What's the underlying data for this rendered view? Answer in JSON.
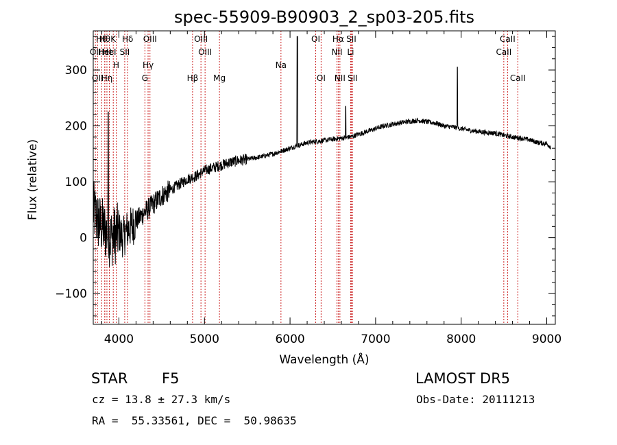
{
  "chart_data": {
    "type": "line",
    "title": "spec-55909-B90903_2_sp03-205.fits",
    "xlabel": "Wavelength (Å)",
    "ylabel": "Flux (relative)",
    "xlim": [
      3700,
      9100
    ],
    "ylim": [
      -155,
      370
    ],
    "x_ticks": [
      4000,
      5000,
      6000,
      7000,
      8000,
      9000
    ],
    "y_ticks": [
      -100,
      0,
      100,
      200,
      300
    ],
    "grid": false,
    "series": [
      {
        "x": [
          3700,
          3750,
          3800,
          3850,
          3900,
          3950,
          4000,
          4050,
          4100,
          4150,
          4200,
          4300,
          4400,
          4500,
          4600,
          4700,
          4800,
          4900,
          5000,
          5100,
          5200,
          5300,
          5400,
          5500,
          5600,
          5700,
          5800,
          5900,
          6000,
          6050,
          6100,
          6200,
          6300,
          6400,
          6500,
          6600,
          6700,
          6800,
          6900,
          7000,
          7100,
          7200,
          7300,
          7400,
          7500,
          7600,
          7700,
          7800,
          7900,
          8000,
          8100,
          8200,
          8300,
          8400,
          8500,
          8600,
          8700,
          8800,
          8900,
          9000,
          9050
        ],
        "y": [
          50,
          30,
          20,
          10,
          0,
          5,
          10,
          0,
          15,
          20,
          30,
          45,
          60,
          75,
          85,
          95,
          105,
          110,
          120,
          125,
          130,
          135,
          138,
          140,
          143,
          146,
          150,
          155,
          160,
          163,
          165,
          170,
          172,
          174,
          176,
          178,
          180,
          185,
          190,
          195,
          200,
          203,
          206,
          208,
          210,
          207,
          205,
          200,
          198,
          195,
          192,
          190,
          188,
          187,
          183,
          180,
          178,
          175,
          170,
          168,
          162
        ]
      }
    ],
    "spikes": [
      {
        "x": 6085,
        "y": 360
      },
      {
        "x": 7955,
        "y": 305
      },
      {
        "x": 6650,
        "y": 235
      },
      {
        "x": 3875,
        "y": 225
      }
    ],
    "lines": [
      {
        "x": 3725,
        "row": 1,
        "label": "OII"
      },
      {
        "x": 3750,
        "row": 3,
        "label": "OII"
      },
      {
        "x": 3798,
        "row": 0,
        "label": "Hθ"
      },
      {
        "x": 3835,
        "row": 0,
        "label": "Hθ"
      },
      {
        "x": 3835,
        "row": 1,
        "label": "HeI"
      },
      {
        "x": 3860,
        "row": 3,
        "label": "Hη"
      },
      {
        "x": 3889,
        "row": 1,
        "label": "HeI"
      },
      {
        "x": 3934,
        "row": 0,
        "label": "K"
      },
      {
        "x": 3969,
        "row": 2,
        "label": "H"
      },
      {
        "x": 4068,
        "row": 1,
        "label": "SII"
      },
      {
        "x": 4102,
        "row": 0,
        "label": "Hδ"
      },
      {
        "x": 4304,
        "row": 3,
        "label": "G"
      },
      {
        "x": 4341,
        "row": 2,
        "label": "Hγ"
      },
      {
        "x": 4363,
        "row": 0,
        "label": "OIII"
      },
      {
        "x": 4861,
        "row": 3,
        "label": "Hβ"
      },
      {
        "x": 4959,
        "row": 0,
        "label": "OIII"
      },
      {
        "x": 5007,
        "row": 1,
        "label": "OIII"
      },
      {
        "x": 5175,
        "row": 3,
        "label": "Mg"
      },
      {
        "x": 5894,
        "row": 2,
        "label": "Na"
      },
      {
        "x": 6300,
        "row": 0,
        "label": "OI"
      },
      {
        "x": 6363,
        "row": 3,
        "label": "OI"
      },
      {
        "x": 6548,
        "row": 1,
        "label": "NII"
      },
      {
        "x": 6563,
        "row": 0,
        "label": "Hα"
      },
      {
        "x": 6583,
        "row": 3,
        "label": "NII"
      },
      {
        "x": 6708,
        "row": 1,
        "label": "Li"
      },
      {
        "x": 6716,
        "row": 0,
        "label": "SII"
      },
      {
        "x": 6731,
        "row": 3,
        "label": "SII"
      },
      {
        "x": 8498,
        "row": 1,
        "label": "CaII"
      },
      {
        "x": 8542,
        "row": 0,
        "label": "CaII"
      },
      {
        "x": 8662,
        "row": 3,
        "label": "CaII"
      }
    ]
  },
  "info": {
    "object_class": "STAR",
    "subclass": "F5",
    "survey": "LAMOST DR5",
    "redshift": "cz = 13.8 ± 27.3 km/s",
    "obs_date": "Obs-Date: 20111213",
    "coords": "RA =  55.33561, DEC =  50.98635"
  }
}
